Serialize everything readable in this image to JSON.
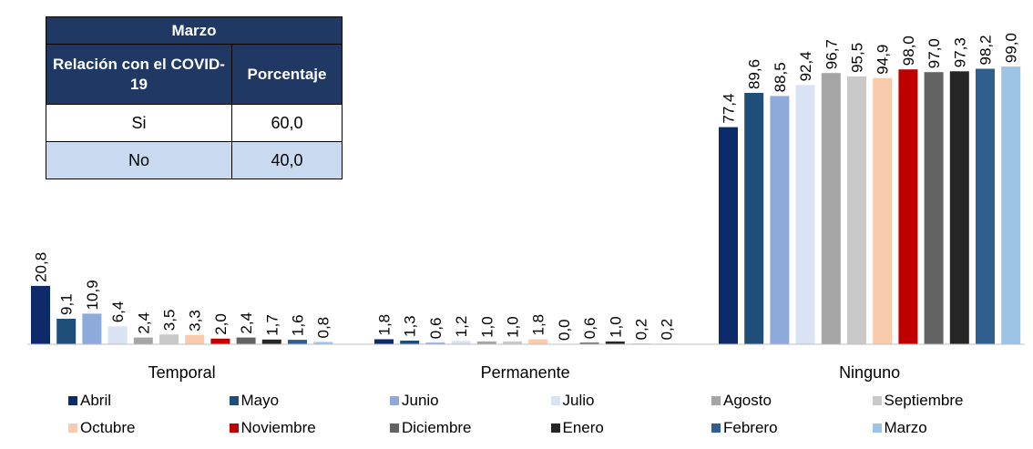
{
  "table": {
    "title": "Marzo",
    "col1_header": "Relación con el COVID-19",
    "col2_header": "Porcentaje",
    "rows": [
      {
        "label": "Si",
        "value": "60,0"
      },
      {
        "label": "No",
        "value": "40,0"
      }
    ],
    "header_color": "#1f3864",
    "alt_row_color": "#c9daf0"
  },
  "chart_data": {
    "type": "bar",
    "categories": [
      "Temporal",
      "Permanente",
      "Ninguno"
    ],
    "ylim": [
      0,
      100
    ],
    "grid": false,
    "legend_position": "bottom",
    "series": [
      {
        "name": "Abril",
        "color": "#0d2a6b",
        "values": [
          20.8,
          1.8,
          77.4
        ],
        "labels": [
          "20,8",
          "1,8",
          "77,4"
        ]
      },
      {
        "name": "Mayo",
        "color": "#1f4e79",
        "values": [
          9.1,
          1.3,
          89.6
        ],
        "labels": [
          "9,1",
          "1,3",
          "89,6"
        ]
      },
      {
        "name": "Junio",
        "color": "#8eaadb",
        "values": [
          10.9,
          0.6,
          88.5
        ],
        "labels": [
          "10,9",
          "0,6",
          "88,5"
        ]
      },
      {
        "name": "Julio",
        "color": "#dae3f3",
        "values": [
          6.4,
          1.2,
          92.4
        ],
        "labels": [
          "6,4",
          "1,2",
          "92,4"
        ]
      },
      {
        "name": "Agosto",
        "color": "#a5a5a5",
        "values": [
          2.4,
          1.0,
          96.7
        ],
        "labels": [
          "2,4",
          "1,0",
          "96,7"
        ]
      },
      {
        "name": "Septiembre",
        "color": "#c9c9c9",
        "values": [
          3.5,
          1.0,
          95.5
        ],
        "labels": [
          "3,5",
          "1,0",
          "95,5"
        ]
      },
      {
        "name": "Octubre",
        "color": "#f8cbad",
        "values": [
          3.3,
          1.8,
          94.9
        ],
        "labels": [
          "3,3",
          "1,8",
          "94,9"
        ]
      },
      {
        "name": "Noviembre",
        "color": "#c00000",
        "values": [
          2.0,
          0.0,
          98.0
        ],
        "labels": [
          "2,0",
          "0,0",
          "98,0"
        ]
      },
      {
        "name": "Diciembre",
        "color": "#636363",
        "values": [
          2.4,
          0.6,
          97.0
        ],
        "labels": [
          "2,4",
          "0,6",
          "97,0"
        ]
      },
      {
        "name": "Enero",
        "color": "#262626",
        "values": [
          1.7,
          1.0,
          97.3
        ],
        "labels": [
          "1,7",
          "1,0",
          "97,3"
        ]
      },
      {
        "name": "Febrero",
        "color": "#2e5f8f",
        "values": [
          1.6,
          0.2,
          98.2
        ],
        "labels": [
          "1,6",
          "0,2",
          "98,2"
        ]
      },
      {
        "name": "Marzo",
        "color": "#9dc3e6",
        "values": [
          0.8,
          0.2,
          99.0
        ],
        "labels": [
          "0,8",
          "0,2",
          "99,0"
        ]
      }
    ]
  }
}
